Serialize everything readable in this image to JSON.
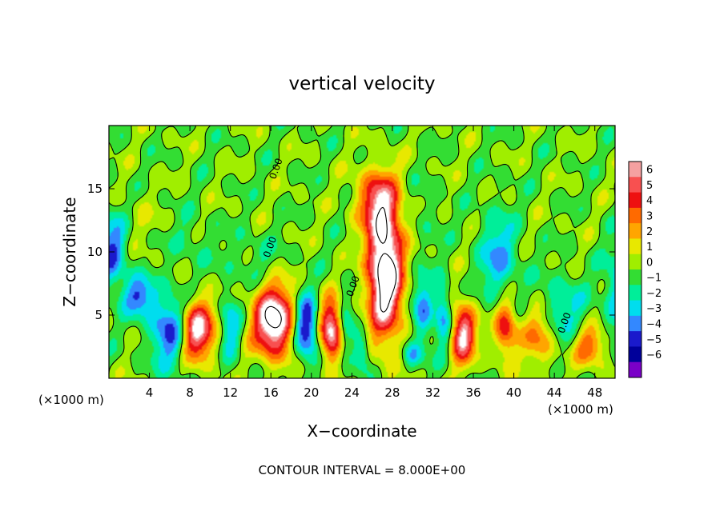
{
  "chart_data": {
    "type": "heatmap",
    "title": "vertical velocity",
    "xlabel": "X−coordinate",
    "ylabel": "Z−coordinate",
    "x_unit_left": "(×1000 m)",
    "x_unit_right": "(×1000 m)",
    "footer": "CONTOUR INTERVAL = 8.000E+00",
    "xlim": [
      0,
      50
    ],
    "ylim": [
      0,
      20
    ],
    "x_ticks": [
      "4",
      "8",
      "12",
      "16",
      "20",
      "24",
      "28",
      "32",
      "36",
      "40",
      "44",
      "48"
    ],
    "x_tick_values": [
      4,
      8,
      12,
      16,
      20,
      24,
      28,
      32,
      36,
      40,
      44,
      48
    ],
    "y_ticks": [
      "5",
      "10",
      "15"
    ],
    "y_tick_values": [
      5,
      10,
      15
    ],
    "contour_labels": [
      "0.00",
      "0.00",
      "0.00",
      "0.00"
    ],
    "contour_label_positions": [
      [
        16.8,
        16.5
      ],
      [
        16.2,
        10.3
      ],
      [
        24.4,
        7.2
      ],
      [
        45.3,
        4.3
      ]
    ],
    "colorbar": {
      "levels": [
        "6",
        "5",
        "4",
        "3",
        "2",
        "1",
        "0",
        "−1",
        "−2",
        "−3",
        "−4",
        "−5",
        "−6"
      ],
      "level_values": [
        6,
        5,
        4,
        3,
        2,
        1,
        0,
        -1,
        -2,
        -3,
        -4,
        -5,
        -6
      ],
      "colors": [
        "#f5a0a0",
        "#f85050",
        "#ee1010",
        "#ff6a00",
        "#ffa500",
        "#e8e800",
        "#a0ee00",
        "#33dd33",
        "#00ee99",
        "#00ddee",
        "#3388ff",
        "#1a1acc",
        "#00009a",
        "#7a00c8"
      ],
      "saturation_color": "#ffffff"
    },
    "features": [
      {
        "x": 8.5,
        "z": 3.8,
        "sx": 1.8,
        "sz": 2.4,
        "w": 9
      },
      {
        "x": 16.3,
        "z": 4.5,
        "sx": 2.0,
        "sz": 2.7,
        "w": 9
      },
      {
        "x": 27.3,
        "z": 8.3,
        "sx": 1.7,
        "sz": 5.0,
        "w": 10
      },
      {
        "x": 26.5,
        "z": 14.0,
        "sx": 2.0,
        "sz": 2.5,
        "w": 5
      },
      {
        "x": 35.0,
        "z": 3.5,
        "sx": 1.2,
        "sz": 2.3,
        "w": 7
      },
      {
        "x": 42.5,
        "z": 3.5,
        "sx": 1.6,
        "sz": 2.5,
        "w": 3.5
      },
      {
        "x": 3.0,
        "z": 12.5,
        "sx": 2.0,
        "sz": 2.5,
        "w": 0.7
      },
      {
        "x": 22.0,
        "z": 3.8,
        "sx": 1.2,
        "sz": 2.4,
        "w": 7.5
      },
      {
        "x": 31.0,
        "z": 5.5,
        "sx": 1.0,
        "sz": 2.5,
        "w": -3.5
      },
      {
        "x": 33.0,
        "z": 5.0,
        "sx": 0.8,
        "sz": 2.5,
        "w": -3.5
      },
      {
        "x": 39.2,
        "z": 4.0,
        "sx": 1.1,
        "sz": 2.3,
        "w": 5
      },
      {
        "x": 38.5,
        "z": 9.5,
        "sx": 1.8,
        "sz": 3.5,
        "w": -3.2
      },
      {
        "x": 47.5,
        "z": 2.5,
        "sx": 1.5,
        "sz": 1.5,
        "w": 4
      },
      {
        "x": 6.5,
        "z": 3.8,
        "sx": 2.2,
        "sz": 2.8,
        "w": -5.5
      },
      {
        "x": 12.0,
        "z": 4.0,
        "sx": 1.0,
        "sz": 2.5,
        "w": -3
      },
      {
        "x": 19.5,
        "z": 4.0,
        "sx": 1.2,
        "sz": 2.5,
        "w": -6
      },
      {
        "x": 23.3,
        "z": 4.0,
        "sx": 0.8,
        "sz": 2.5,
        "w": -3
      },
      {
        "x": 0.3,
        "z": 10.0,
        "sx": 1.5,
        "sz": 3.0,
        "w": -4
      },
      {
        "x": 3.0,
        "z": 6.5,
        "sx": 1.5,
        "sz": 1.5,
        "w": -4
      },
      {
        "x": 25.0,
        "z": 2.0,
        "sx": 0.8,
        "sz": 1.5,
        "w": -3
      },
      {
        "x": 44.5,
        "z": 5.5,
        "sx": 2.5,
        "sz": 2.5,
        "w": -2.5
      },
      {
        "x": 50.5,
        "z": 7.0,
        "sx": 1.5,
        "sz": 3.5,
        "w": -3
      },
      {
        "x": 30.0,
        "z": 1.8,
        "sx": 1.0,
        "sz": 1.0,
        "w": -3
      },
      {
        "x": 14.0,
        "z": 9.5,
        "sx": 3.0,
        "sz": 2.0,
        "w": -1
      },
      {
        "x": 31.5,
        "z": 13.0,
        "sx": 1.5,
        "sz": 3.0,
        "w": -0.8
      },
      {
        "x": 8.0,
        "z": 11.0,
        "sx": 2.0,
        "sz": 2.0,
        "w": -1
      }
    ]
  }
}
